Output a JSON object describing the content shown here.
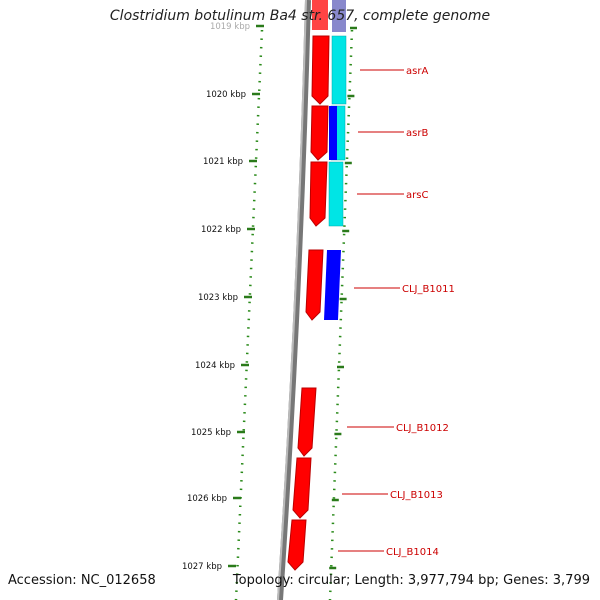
{
  "title": "Clostridium botulinum Ba4 str. 657, complete genome",
  "footer": {
    "accession": "Accession: NC_012658",
    "stats": "Topology: circular; Length: 3,977,794 bp; Genes: 3,799"
  },
  "ticks": [
    {
      "label": "1019 kbp"
    },
    {
      "label": "1020 kbp"
    },
    {
      "label": "1021 kbp"
    },
    {
      "label": "1022 kbp"
    },
    {
      "label": "1023 kbp"
    },
    {
      "label": "1024 kbp"
    },
    {
      "label": "1025 kbp"
    },
    {
      "label": "1026 kbp"
    },
    {
      "label": "1027 kbp"
    }
  ],
  "genes": [
    {
      "label": "asrA"
    },
    {
      "label": "asrB"
    },
    {
      "label": "arsC"
    },
    {
      "label": "CLJ_B1011"
    },
    {
      "label": "CLJ_B1012"
    },
    {
      "label": "CLJ_B1013"
    },
    {
      "label": "CLJ_B1014"
    }
  ],
  "colors": {
    "cds": "#ff0000",
    "cog_cyan": "#00e5e5",
    "cog_blue": "#0000ff",
    "backbone": "#888888",
    "tick": "#2a7a1a",
    "label": "#cc0000"
  }
}
